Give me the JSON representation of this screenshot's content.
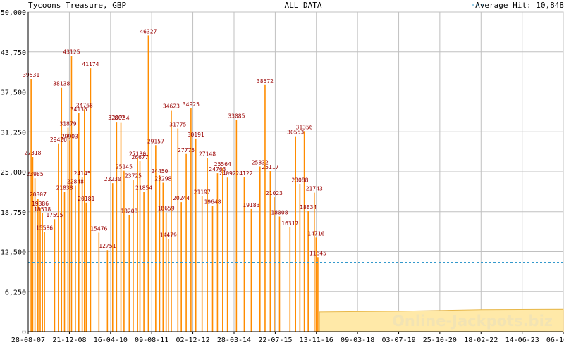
{
  "header": {
    "title": "Tycoons Treasure, GBP",
    "center": "ALL DATA",
    "legend_label": "Average Hit: 10,848"
  },
  "watermark": "Online-Jackpots.biz",
  "colors": {
    "bar": "#ff8c00",
    "bar_label": "#990000",
    "average_line": "#3399cc",
    "baseline_fill": "#ffe9a8",
    "grid": "#c0c0c0"
  },
  "chart_data": {
    "type": "bar",
    "title": "Tycoons Treasure, GBP",
    "subtitle": "ALL DATA",
    "xlabel": "",
    "ylabel": "",
    "ylim": [
      0,
      50000
    ],
    "y_ticks": [
      "0",
      "6,250",
      "12,500",
      "18,750",
      "25,000",
      "31,250",
      "37,500",
      "43,750",
      "50,000"
    ],
    "y_tick_values": [
      0,
      6250,
      12500,
      18750,
      25000,
      31250,
      37500,
      43750,
      50000
    ],
    "x_ticks": [
      "28-08-07",
      "21-12-08",
      "16-04-10",
      "09-08-11",
      "02-12-12",
      "28-03-14",
      "22-07-15",
      "13-11-16",
      "09-03-18",
      "03-07-19",
      "25-10-20",
      "18-02-22",
      "14-06-23",
      "06-10-24"
    ],
    "average": 10848,
    "average_label": "Average Hit: 10,848",
    "grid": true,
    "legend_position": "top-right",
    "labeled_peaks": [
      {
        "date": "2007-10-01",
        "value": 39531
      },
      {
        "date": "2007-10-20",
        "value": 27318
      },
      {
        "date": "2007-11-15",
        "value": 23985
      },
      {
        "date": "2007-12-20",
        "value": 20807
      },
      {
        "date": "2008-01-15",
        "value": 19386
      },
      {
        "date": "2008-02-10",
        "value": 18518
      },
      {
        "date": "2008-03-05",
        "value": 15586
      },
      {
        "date": "2008-07-01",
        "value": 17595
      },
      {
        "date": "2008-08-15",
        "value": 29426
      },
      {
        "date": "2008-09-20",
        "value": 38138
      },
      {
        "date": "2008-10-25",
        "value": 21838
      },
      {
        "date": "2008-12-05",
        "value": 31879
      },
      {
        "date": "2008-12-25",
        "value": 29903
      },
      {
        "date": "2009-01-15",
        "value": 43125
      },
      {
        "date": "2009-03-01",
        "value": 22848
      },
      {
        "date": "2009-04-10",
        "value": 34135
      },
      {
        "date": "2009-05-20",
        "value": 24145
      },
      {
        "date": "2009-06-15",
        "value": 34768
      },
      {
        "date": "2009-07-05",
        "value": 20181
      },
      {
        "date": "2009-08-25",
        "value": 41174
      },
      {
        "date": "2009-12-01",
        "value": 15476
      },
      {
        "date": "2010-03-10",
        "value": 12751
      },
      {
        "date": "2010-05-10",
        "value": 23230
      },
      {
        "date": "2010-06-25",
        "value": 32802
      },
      {
        "date": "2010-08-15",
        "value": 32754
      },
      {
        "date": "2010-09-20",
        "value": 25145
      },
      {
        "date": "2010-11-20",
        "value": 18208
      },
      {
        "date": "2011-01-05",
        "value": 23725
      },
      {
        "date": "2011-02-25",
        "value": 27130
      },
      {
        "date": "2011-03-25",
        "value": 26677
      },
      {
        "date": "2011-05-10",
        "value": 21854
      },
      {
        "date": "2011-07-01",
        "value": 46327
      },
      {
        "date": "2011-09-25",
        "value": 29157
      },
      {
        "date": "2011-11-10",
        "value": 24450
      },
      {
        "date": "2011-12-20",
        "value": 23298
      },
      {
        "date": "2012-01-25",
        "value": 18659
      },
      {
        "date": "2012-02-20",
        "value": 14479
      },
      {
        "date": "2012-03-25",
        "value": 34623
      },
      {
        "date": "2012-06-10",
        "value": 31775
      },
      {
        "date": "2012-07-20",
        "value": 20244
      },
      {
        "date": "2012-09-15",
        "value": 27775
      },
      {
        "date": "2012-11-10",
        "value": 34925
      },
      {
        "date": "2013-01-05",
        "value": 30191
      },
      {
        "date": "2013-03-20",
        "value": 21197
      },
      {
        "date": "2013-05-20",
        "value": 27148
      },
      {
        "date": "2013-07-20",
        "value": 19648
      },
      {
        "date": "2013-09-15",
        "value": 24763
      },
      {
        "date": "2013-11-15",
        "value": 25564
      },
      {
        "date": "2014-01-10",
        "value": 24092
      },
      {
        "date": "2014-04-25",
        "value": 33085
      },
      {
        "date": "2014-07-25",
        "value": 24122
      },
      {
        "date": "2014-10-15",
        "value": 19183
      },
      {
        "date": "2015-01-25",
        "value": 25832
      },
      {
        "date": "2015-03-25",
        "value": 38572
      },
      {
        "date": "2015-05-25",
        "value": 25117
      },
      {
        "date": "2015-07-10",
        "value": 21023
      },
      {
        "date": "2015-09-10",
        "value": 18008
      },
      {
        "date": "2016-01-10",
        "value": 16317
      },
      {
        "date": "2016-03-15",
        "value": 30553
      },
      {
        "date": "2016-05-05",
        "value": 23088
      },
      {
        "date": "2016-06-25",
        "value": 31356
      },
      {
        "date": "2016-08-10",
        "value": 18834
      },
      {
        "date": "2016-10-20",
        "value": 21743
      },
      {
        "date": "2016-11-10",
        "value": 14716
      },
      {
        "date": "2016-12-01",
        "value": 11645
      }
    ]
  }
}
